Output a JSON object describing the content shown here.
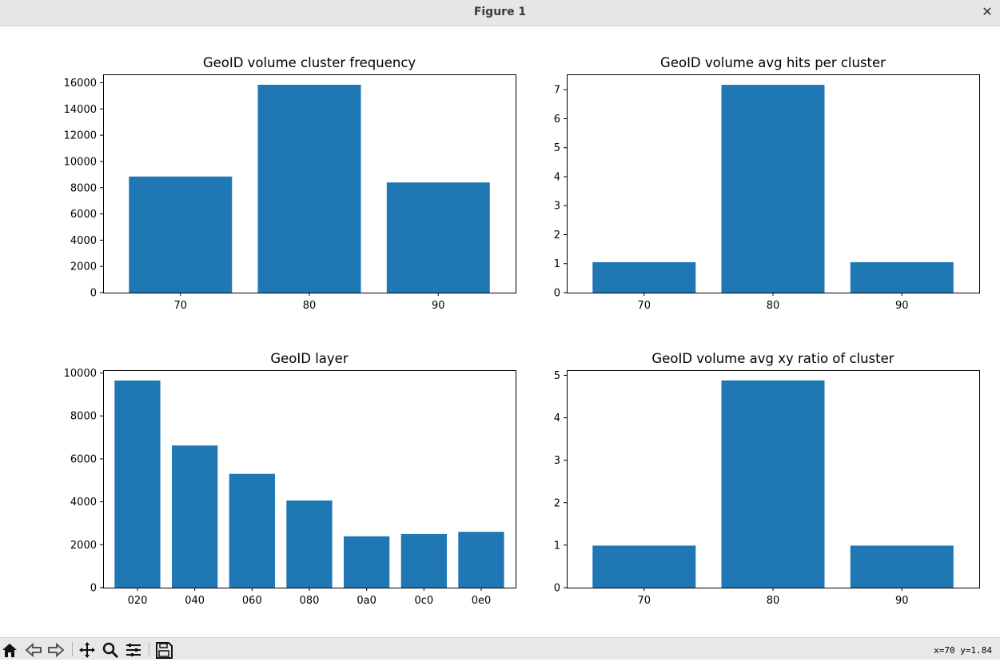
{
  "window": {
    "title": "Figure 1"
  },
  "toolbar": {
    "buttons": [
      "home-icon",
      "back-icon",
      "forward-icon",
      "pan-icon",
      "zoom-icon",
      "configure-icon",
      "save-icon"
    ],
    "coords": "x=70 y=1.84"
  },
  "colors": {
    "bar": "#1f77b4"
  },
  "chart_data": [
    {
      "type": "bar",
      "title": "GeoID volume cluster frequency",
      "categories": [
        "70",
        "80",
        "90"
      ],
      "values": [
        8850,
        15850,
        8400
      ],
      "ylim": [
        0,
        16640
      ],
      "yticks": [
        "0",
        "2000",
        "4000",
        "6000",
        "8000",
        "10000",
        "12000",
        "14000",
        "16000"
      ],
      "ytick_values": [
        0,
        2000,
        4000,
        6000,
        8000,
        10000,
        12000,
        14000,
        16000
      ],
      "xlabel": "",
      "ylabel": ""
    },
    {
      "type": "bar",
      "title": "GeoID volume avg hits per cluster",
      "categories": [
        "70",
        "80",
        "90"
      ],
      "values": [
        1.05,
        7.17,
        1.05
      ],
      "ylim": [
        0,
        7.53
      ],
      "yticks": [
        "0",
        "1",
        "2",
        "3",
        "4",
        "5",
        "6",
        "7"
      ],
      "ytick_values": [
        0,
        1,
        2,
        3,
        4,
        5,
        6,
        7
      ],
      "xlabel": "",
      "ylabel": ""
    },
    {
      "type": "bar",
      "title": "GeoID layer",
      "categories": [
        "020",
        "040",
        "060",
        "080",
        "0a0",
        "0c0",
        "0e0"
      ],
      "values": [
        9650,
        6620,
        5300,
        4060,
        2390,
        2500,
        2600
      ],
      "ylim": [
        0,
        10130
      ],
      "yticks": [
        "0",
        "2000",
        "4000",
        "6000",
        "8000",
        "10000"
      ],
      "ytick_values": [
        0,
        2000,
        4000,
        6000,
        8000,
        10000
      ],
      "xlabel": "",
      "ylabel": ""
    },
    {
      "type": "bar",
      "title": "GeoID volume avg xy ratio of cluster",
      "categories": [
        "70",
        "80",
        "90"
      ],
      "values": [
        0.99,
        4.88,
        0.99
      ],
      "ylim": [
        0,
        5.12
      ],
      "yticks": [
        "0",
        "1",
        "2",
        "3",
        "4",
        "5"
      ],
      "ytick_values": [
        0,
        1,
        2,
        3,
        4,
        5
      ],
      "xlabel": "",
      "ylabel": ""
    }
  ]
}
